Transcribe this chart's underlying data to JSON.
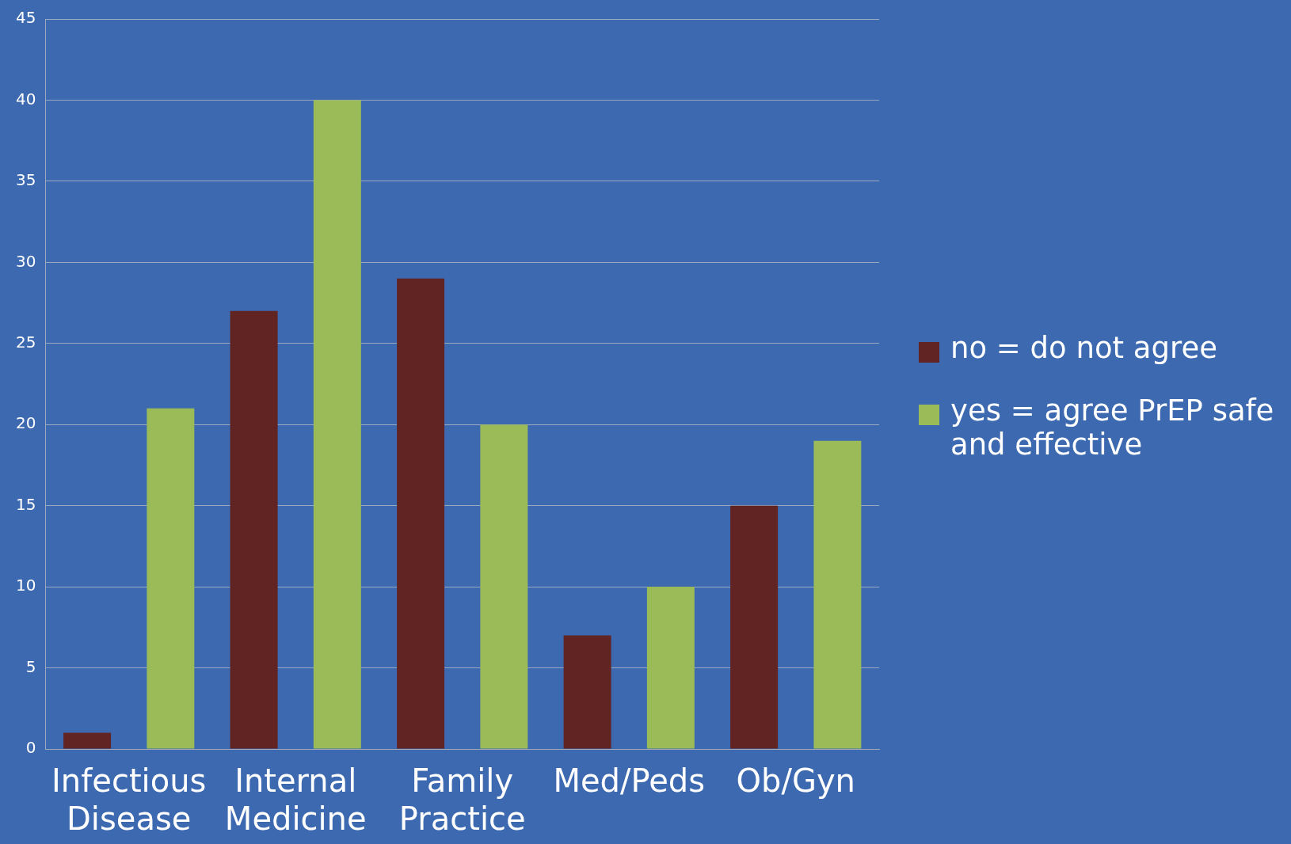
{
  "chart_data": {
    "type": "bar",
    "categories": [
      "Infectious Disease",
      "Internal Medicine",
      "Family Practice",
      "Med/Peds",
      "Ob/Gyn"
    ],
    "series": [
      {
        "name": "no = do not agree",
        "color": "#622423",
        "values": [
          1,
          27,
          29,
          7,
          15
        ]
      },
      {
        "name": "yes = agree PrEP safe and effective",
        "color": "#9bbb59",
        "values": [
          21,
          40,
          20,
          10,
          19
        ]
      }
    ],
    "ylim": [
      0,
      45
    ],
    "yticks": [
      0,
      5,
      10,
      15,
      20,
      25,
      30,
      35,
      40,
      45
    ],
    "grid": "y",
    "legend": "right"
  }
}
